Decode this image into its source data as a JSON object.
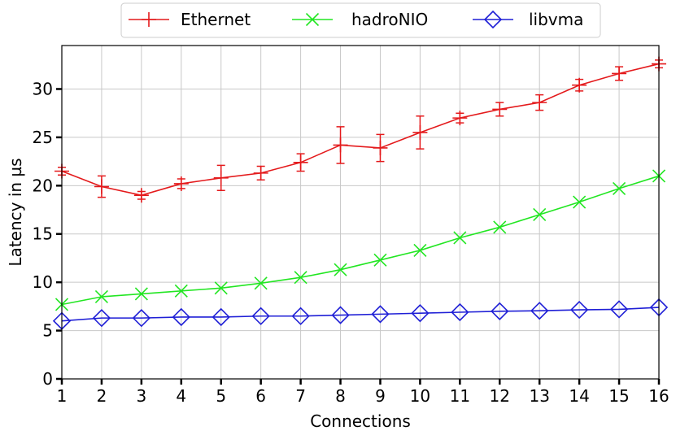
{
  "chart_data": {
    "type": "line",
    "xlabel": "Connections",
    "ylabel": "Latency in µs",
    "x": [
      1,
      2,
      3,
      4,
      5,
      6,
      7,
      8,
      9,
      10,
      11,
      12,
      13,
      14,
      15,
      16
    ],
    "xlim": [
      1,
      16
    ],
    "ylim": [
      0,
      34.5
    ],
    "yticks": [
      0,
      5,
      10,
      15,
      20,
      25,
      30
    ],
    "grid": true,
    "legend_position": "top-center",
    "series": [
      {
        "name": "Ethernet",
        "color": "#e41a1c",
        "marker": "plus",
        "values": [
          21.5,
          19.9,
          19.0,
          20.2,
          20.8,
          21.3,
          22.4,
          24.2,
          23.9,
          25.5,
          27.0,
          27.9,
          28.6,
          30.4,
          31.6,
          32.6
        ],
        "errors": [
          0.4,
          1.1,
          0.4,
          0.5,
          1.3,
          0.7,
          0.9,
          1.9,
          1.4,
          1.7,
          0.5,
          0.7,
          0.8,
          0.6,
          0.7,
          0.4
        ]
      },
      {
        "name": "hadroNIO",
        "color": "#22e622",
        "marker": "x",
        "values": [
          7.7,
          8.5,
          8.8,
          9.1,
          9.4,
          9.9,
          10.5,
          11.3,
          12.3,
          13.3,
          14.6,
          15.7,
          17.0,
          18.3,
          19.7,
          21.0
        ],
        "errors": [
          0.1,
          0.1,
          0.1,
          0.1,
          0.1,
          0.1,
          0.1,
          0.1,
          0.1,
          0.1,
          0.1,
          0.1,
          0.1,
          0.1,
          0.1,
          0.1
        ]
      },
      {
        "name": "libvma",
        "color": "#1f1fd6",
        "marker": "diamond",
        "values": [
          6.0,
          6.3,
          6.3,
          6.4,
          6.4,
          6.5,
          6.5,
          6.6,
          6.7,
          6.8,
          6.9,
          7.0,
          7.05,
          7.15,
          7.2,
          7.4
        ],
        "errors": [
          0.1,
          0.1,
          0.1,
          0.1,
          0.1,
          0.1,
          0.1,
          0.1,
          0.1,
          0.1,
          0.1,
          0.1,
          0.1,
          0.1,
          0.1,
          0.1
        ]
      }
    ]
  }
}
